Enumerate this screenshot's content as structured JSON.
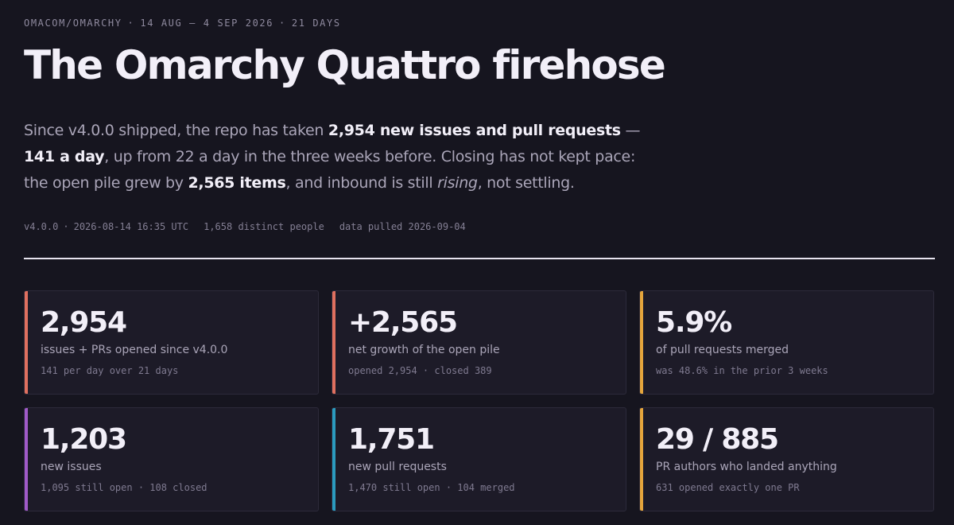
{
  "header": {
    "eyebrow": {
      "repo": "OMACOM/OMARCHY",
      "date_range": "14 AUG – 4 SEP 2026",
      "duration": "21 DAYS"
    },
    "title": "The Omarchy Quattro firehose"
  },
  "lede": {
    "t1": "Since v4.0.0 shipped, the repo has taken ",
    "b1": "2,954 new issues and pull requests",
    "t2": " — ",
    "b2": "141 a day",
    "t3": ", up from 22 a day in the three weeks before. Closing has not kept pace: the open pile grew by ",
    "b3": "2,565 items",
    "t4": ", and inbound is still ",
    "i1": "rising",
    "t5": ", not settling."
  },
  "meta": {
    "version": "v4.0.0",
    "release_time": "2026-08-14 16:35 UTC",
    "people": "1,658 distinct people",
    "pulled": "data pulled 2026-09-04"
  },
  "cards": [
    {
      "value": "2,954",
      "label": "issues + PRs opened since v4.0.0",
      "sub": "141 per day over 21 days",
      "accent": "#e0705f"
    },
    {
      "value": "+2,565",
      "label": "net growth of the open pile",
      "sub": "opened 2,954 · closed 389",
      "accent": "#e0705f"
    },
    {
      "value": "5.9%",
      "label": "of pull requests merged",
      "sub": "was 48.6% in the prior 3 weeks",
      "accent": "#e5a53c"
    },
    {
      "value": "1,203",
      "label": "new issues",
      "sub": "1,095 still open · 108 closed",
      "accent": "#a05ac8"
    },
    {
      "value": "1,751",
      "label": "new pull requests",
      "sub": "1,470 still open · 104 merged",
      "accent": "#2b9bbf"
    },
    {
      "value": "29 / 885",
      "label": "PR authors who landed anything",
      "sub": "631 opened exactly one PR",
      "accent": "#e5a53c"
    }
  ]
}
